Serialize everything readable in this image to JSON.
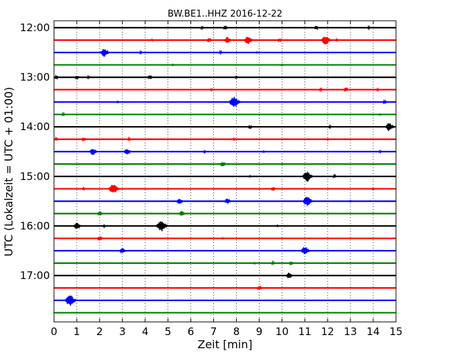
{
  "chart_data": {
    "type": "line",
    "title": "BW.BE1..HHZ 2016-12-22",
    "xlabel": "Zeit  [min]",
    "ylabel": "UTC (Lokalzeit = UTC + 01:00)",
    "xlim": [
      0,
      15
    ],
    "x_ticks": [
      "0",
      "1",
      "2",
      "3",
      "4",
      "5",
      "6",
      "7",
      "8",
      "9",
      "10",
      "11",
      "12",
      "13",
      "14",
      "15"
    ],
    "y_ticks": [
      "12:00",
      "13:00",
      "14:00",
      "15:00",
      "16:00",
      "17:00"
    ],
    "grid": "vertical dotted",
    "line_colors": [
      "#000000",
      "#ff0000",
      "#0000ff",
      "#008000"
    ],
    "traces": [
      {
        "time": "12:00",
        "color": "#000000",
        "events": [
          [
            6.5,
            0.25
          ],
          [
            7.5,
            0.35
          ],
          [
            11.5,
            0.3
          ],
          [
            13.8,
            0.2
          ]
        ]
      },
      {
        "time": "12:15",
        "color": "#ff0000",
        "events": [
          [
            4.3,
            0.15
          ],
          [
            6.8,
            0.35
          ],
          [
            7.6,
            0.55
          ],
          [
            8.5,
            0.7
          ],
          [
            9.9,
            0.3
          ],
          [
            11.9,
            0.8
          ],
          [
            12.4,
            0.2
          ]
        ]
      },
      {
        "time": "12:30",
        "color": "#0000ff",
        "events": [
          [
            2.2,
            0.7
          ],
          [
            3.8,
            0.2
          ],
          [
            7.3,
            0.25
          ],
          [
            8.9,
            0.15
          ]
        ]
      },
      {
        "time": "12:45",
        "color": "#008000",
        "events": [
          [
            5.2,
            0.15
          ],
          [
            10.0,
            0.15
          ]
        ]
      },
      {
        "time": "13:00",
        "color": "#000000",
        "events": [
          [
            0.1,
            0.3
          ],
          [
            1.0,
            0.3
          ],
          [
            1.5,
            0.2
          ],
          [
            4.2,
            0.35
          ],
          [
            8.0,
            0.2
          ]
        ]
      },
      {
        "time": "13:15",
        "color": "#ff0000",
        "events": [
          [
            6.9,
            0.2
          ],
          [
            11.7,
            0.25
          ],
          [
            12.8,
            0.35
          ],
          [
            14.2,
            0.2
          ]
        ]
      },
      {
        "time": "13:30",
        "color": "#0000ff",
        "events": [
          [
            2.8,
            0.15
          ],
          [
            7.9,
            0.95
          ],
          [
            14.5,
            0.3
          ]
        ]
      },
      {
        "time": "13:45",
        "color": "#008000",
        "events": [
          [
            0.4,
            0.25
          ],
          [
            14.3,
            0.15
          ]
        ]
      },
      {
        "time": "14:00",
        "color": "#000000",
        "events": [
          [
            8.6,
            0.3
          ],
          [
            12.1,
            0.2
          ],
          [
            14.7,
            0.7
          ]
        ]
      },
      {
        "time": "14:15",
        "color": "#ff0000",
        "events": [
          [
            0.1,
            0.25
          ],
          [
            1.3,
            0.3
          ],
          [
            3.3,
            0.25
          ],
          [
            7.9,
            0.2
          ],
          [
            12.0,
            0.15
          ]
        ]
      },
      {
        "time": "14:30",
        "color": "#0000ff",
        "events": [
          [
            1.7,
            0.6
          ],
          [
            3.2,
            0.5
          ],
          [
            6.6,
            0.2
          ],
          [
            9.2,
            0.15
          ],
          [
            14.3,
            0.2
          ]
        ]
      },
      {
        "time": "14:45",
        "color": "#008000",
        "events": [
          [
            7.4,
            0.45
          ],
          [
            10.0,
            0.15
          ]
        ]
      },
      {
        "time": "15:00",
        "color": "#000000",
        "events": [
          [
            8.6,
            0.15
          ],
          [
            11.1,
            0.85
          ],
          [
            12.3,
            0.25
          ]
        ]
      },
      {
        "time": "15:15",
        "color": "#ff0000",
        "events": [
          [
            1.3,
            0.2
          ],
          [
            2.6,
            0.85
          ],
          [
            9.6,
            0.3
          ],
          [
            14.0,
            0.15
          ]
        ]
      },
      {
        "time": "15:30",
        "color": "#0000ff",
        "events": [
          [
            5.5,
            0.5
          ],
          [
            7.6,
            0.45
          ],
          [
            11.1,
            0.8
          ],
          [
            13.0,
            0.15
          ]
        ]
      },
      {
        "time": "15:45",
        "color": "#008000",
        "events": [
          [
            2.0,
            0.35
          ],
          [
            5.6,
            0.45
          ]
        ]
      },
      {
        "time": "16:00",
        "color": "#000000",
        "events": [
          [
            1.0,
            0.55
          ],
          [
            2.2,
            0.2
          ],
          [
            4.7,
            0.95
          ],
          [
            9.8,
            0.15
          ]
        ]
      },
      {
        "time": "16:15",
        "color": "#ff0000",
        "events": [
          [
            2.0,
            0.4
          ],
          [
            7.4,
            0.15
          ]
        ]
      },
      {
        "time": "16:30",
        "color": "#0000ff",
        "events": [
          [
            3.0,
            0.45
          ],
          [
            11.0,
            0.7
          ]
        ]
      },
      {
        "time": "16:45",
        "color": "#008000",
        "events": [
          [
            8.8,
            0.15
          ],
          [
            9.6,
            0.25
          ],
          [
            10.4,
            0.3
          ]
        ]
      },
      {
        "time": "17:00",
        "color": "#000000",
        "events": [
          [
            10.3,
            0.5
          ]
        ]
      },
      {
        "time": "17:15",
        "color": "#ff0000",
        "events": [
          [
            9.0,
            0.35
          ]
        ]
      },
      {
        "time": "17:30",
        "color": "#0000ff",
        "events": [
          [
            0.7,
            0.95
          ]
        ]
      },
      {
        "time": "17:45",
        "color": "#008000",
        "events": []
      }
    ]
  }
}
